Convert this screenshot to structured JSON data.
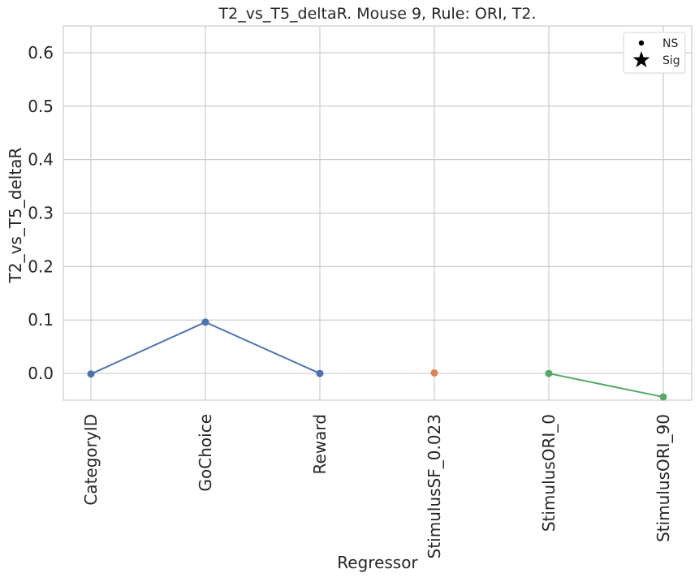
{
  "chart_data": {
    "type": "line",
    "title": "T2_vs_T5_deltaR. Mouse 9, Rule: ORI, T2.",
    "xlabel": "Regressor",
    "ylabel": "T2_vs_T5_deltaR",
    "categories": [
      "CategoryID",
      "GoChoice",
      "Reward",
      "StimulusSF_0.023",
      "StimulusORI_0",
      "StimulusORI_90"
    ],
    "ylim": [
      -0.05,
      0.65
    ],
    "yticks": [
      0.0,
      0.1,
      0.2,
      0.3,
      0.4,
      0.5,
      0.6
    ],
    "ytick_labels": [
      "0.0",
      "0.1",
      "0.2",
      "0.3",
      "0.4",
      "0.5",
      "0.6"
    ],
    "grid": true,
    "legend": {
      "position": "top-right",
      "entries": [
        {
          "label": "NS",
          "marker": "dot"
        },
        {
          "label": "Sig",
          "marker": "star"
        }
      ]
    },
    "series": [
      {
        "color": "#4c72b0",
        "points": [
          {
            "category": "CategoryID",
            "value": -0.001,
            "significance": "NS"
          },
          {
            "category": "GoChoice",
            "value": 0.096,
            "significance": "NS"
          },
          {
            "category": "Reward",
            "value": 0.0,
            "significance": "NS"
          }
        ]
      },
      {
        "color": "#dd8452",
        "points": [
          {
            "category": "StimulusSF_0.023",
            "value": 0.001,
            "significance": "NS"
          }
        ]
      },
      {
        "color": "#55a868",
        "points": [
          {
            "category": "StimulusORI_0",
            "value": 0.0,
            "significance": "NS"
          },
          {
            "category": "StimulusORI_90",
            "value": -0.044,
            "significance": "NS"
          }
        ]
      }
    ]
  }
}
